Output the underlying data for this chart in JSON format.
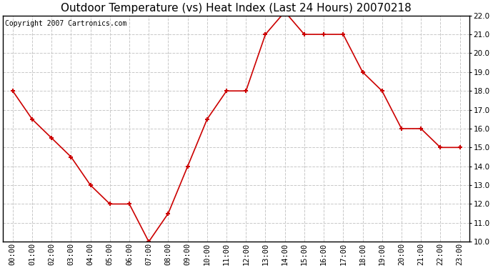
{
  "title": "Outdoor Temperature (vs) Heat Index (Last 24 Hours) 20070218",
  "copyright": "Copyright 2007 Cartronics.com",
  "x_labels": [
    "00:00",
    "01:00",
    "02:00",
    "03:00",
    "04:00",
    "05:00",
    "06:00",
    "07:00",
    "08:00",
    "09:00",
    "10:00",
    "11:00",
    "12:00",
    "13:00",
    "14:00",
    "15:00",
    "16:00",
    "17:00",
    "18:00",
    "19:00",
    "20:00",
    "21:00",
    "22:00",
    "23:00"
  ],
  "y_values": [
    18.0,
    16.5,
    15.5,
    14.5,
    13.0,
    12.0,
    12.0,
    10.0,
    11.5,
    14.0,
    16.5,
    18.0,
    18.0,
    21.0,
    22.2,
    21.0,
    21.0,
    21.0,
    19.0,
    18.0,
    16.0,
    16.0,
    15.0,
    15.0
  ],
  "line_color": "#cc0000",
  "marker": "+",
  "marker_size": 5,
  "marker_color": "#cc0000",
  "background_color": "#ffffff",
  "plot_background": "#ffffff",
  "grid_color": "#c8c8c8",
  "grid_style": "--",
  "ylim": [
    10.0,
    22.0
  ],
  "yticks": [
    10.0,
    11.0,
    12.0,
    13.0,
    14.0,
    15.0,
    16.0,
    17.0,
    18.0,
    19.0,
    20.0,
    21.0,
    22.0
  ],
  "title_fontsize": 11,
  "copyright_fontsize": 7,
  "tick_fontsize": 7.5,
  "line_width": 1.2
}
